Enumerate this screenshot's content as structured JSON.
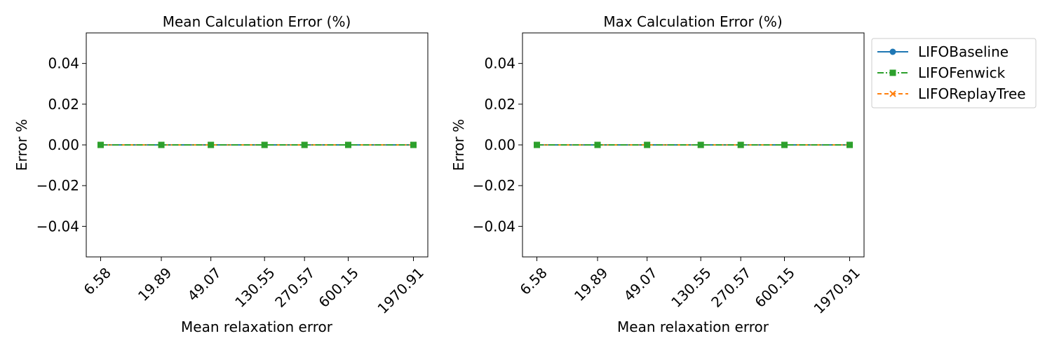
{
  "chart_data": [
    {
      "type": "line",
      "title": "Mean Calculation Error (%)",
      "xlabel": "Mean relaxation error",
      "ylabel": "Error %",
      "x": [
        6.58,
        19.89,
        49.07,
        130.55,
        270.57,
        600.15,
        1970.91
      ],
      "x_scale": "log",
      "x_ticks": [
        "6.58",
        "19.89",
        "49.07",
        "130.55",
        "270.57",
        "600.15",
        "1970.91"
      ],
      "ylim": [
        -0.055,
        0.055
      ],
      "y_ticks": [
        "0.04",
        "0.02",
        "0.00",
        "−0.02",
        "−0.04"
      ],
      "y_tick_values": [
        0.04,
        0.02,
        0.0,
        -0.02,
        -0.04
      ],
      "grid": false,
      "legend": "none",
      "series": [
        {
          "name": "LIFOBaseline",
          "values": [
            0,
            0,
            0,
            0,
            0,
            0,
            0
          ],
          "color": "#1f77b4",
          "marker": "circle",
          "linestyle": "solid"
        },
        {
          "name": "LIFOFenwick",
          "values": [
            0,
            0,
            0,
            0,
            0,
            0,
            0
          ],
          "color": "#2ca02c",
          "marker": "square",
          "linestyle": "dashdot"
        },
        {
          "name": "LIFOReplayTree",
          "values": [
            0,
            0,
            0,
            0,
            0,
            0,
            0
          ],
          "color": "#ff7f0e",
          "marker": "x",
          "linestyle": "dashed"
        }
      ]
    },
    {
      "type": "line",
      "title": "Max Calculation Error (%)",
      "xlabel": "Mean relaxation error",
      "ylabel": "Error %",
      "x": [
        6.58,
        19.89,
        49.07,
        130.55,
        270.57,
        600.15,
        1970.91
      ],
      "x_scale": "log",
      "x_ticks": [
        "6.58",
        "19.89",
        "49.07",
        "130.55",
        "270.57",
        "600.15",
        "1970.91"
      ],
      "ylim": [
        -0.055,
        0.055
      ],
      "y_ticks": [
        "0.04",
        "0.02",
        "0.00",
        "−0.02",
        "−0.04"
      ],
      "y_tick_values": [
        0.04,
        0.02,
        0.0,
        -0.02,
        -0.04
      ],
      "grid": false,
      "legend": "outside-upper-right",
      "series": [
        {
          "name": "LIFOBaseline",
          "values": [
            0,
            0,
            0,
            0,
            0,
            0,
            0
          ],
          "color": "#1f77b4",
          "marker": "circle",
          "linestyle": "solid"
        },
        {
          "name": "LIFOFenwick",
          "values": [
            0,
            0,
            0,
            0,
            0,
            0,
            0
          ],
          "color": "#2ca02c",
          "marker": "square",
          "linestyle": "dashdot"
        },
        {
          "name": "LIFOReplayTree",
          "values": [
            0,
            0,
            0,
            0,
            0,
            0,
            0
          ],
          "color": "#ff7f0e",
          "marker": "x",
          "linestyle": "dashed"
        }
      ]
    }
  ]
}
